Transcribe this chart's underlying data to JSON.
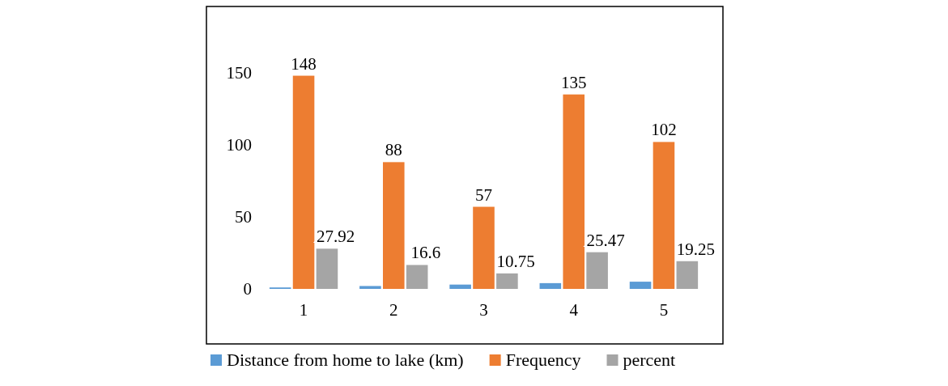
{
  "chart_data": {
    "type": "bar",
    "categories": [
      "1",
      "2",
      "3",
      "4",
      "5"
    ],
    "series": [
      {
        "name": "Distance from home to lake (km)",
        "color": "#5b9bd5",
        "values": [
          1,
          2,
          3,
          4,
          5
        ]
      },
      {
        "name": "Frequency",
        "color": "#ed7d31",
        "values": [
          148,
          88,
          57,
          135,
          102
        ],
        "value_labels": [
          "148",
          "88",
          "57",
          "135",
          "102"
        ]
      },
      {
        "name": "percent",
        "color": "#a5a5a5",
        "values": [
          27.92,
          16.6,
          10.75,
          25.47,
          19.25
        ],
        "value_labels": [
          "27.92",
          "16.6",
          "10.75",
          "25.47",
          "19.25"
        ]
      }
    ],
    "ylim": [
      0,
      150
    ],
    "yticks": [
      0,
      50,
      100,
      150
    ],
    "legend": "bottom"
  }
}
